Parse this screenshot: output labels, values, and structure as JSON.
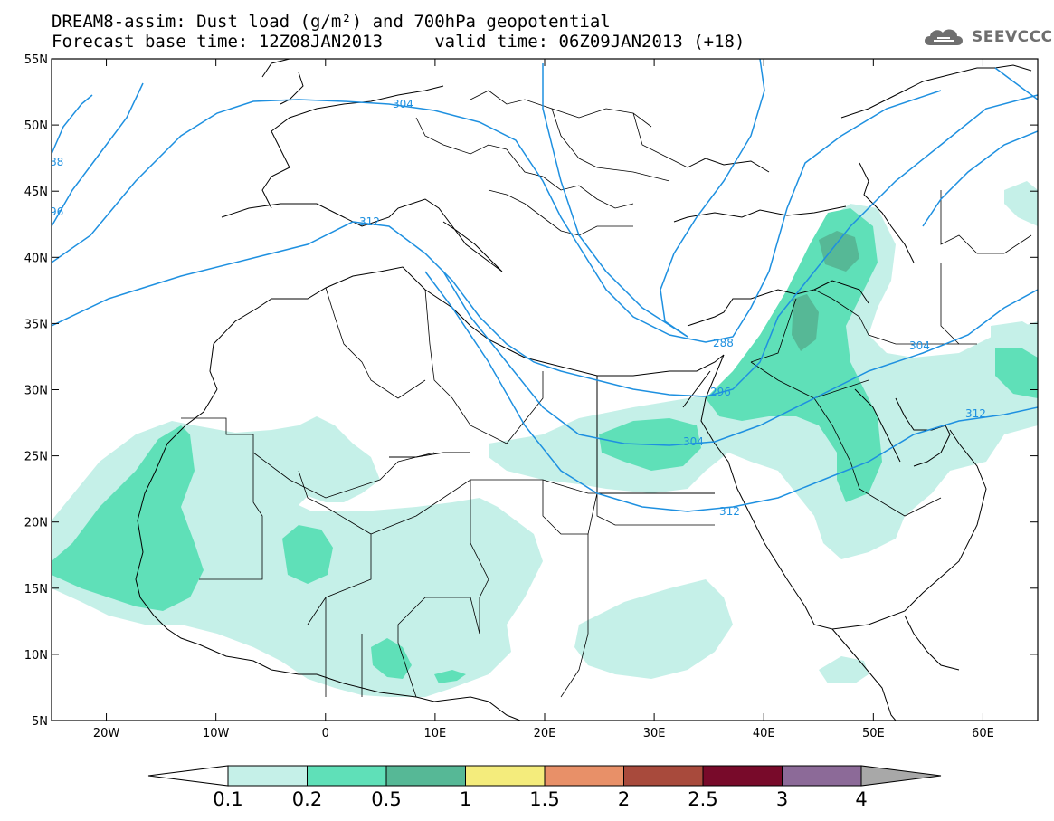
{
  "title": {
    "line1": "DREAM8-assim: Dust load (g/m²) and 700hPa geopotential",
    "line2": "Forecast base time: 12Z08JAN2013     valid time: 06Z09JAN2013 (+18)"
  },
  "logo": {
    "text": "SEEVCCC",
    "icon": "cloud-icon"
  },
  "map": {
    "lon_range": [
      -25,
      65
    ],
    "lat_range": [
      5,
      55
    ],
    "lon_ticks": [
      "20W",
      "10W",
      "0",
      "10E",
      "20E",
      "30E",
      "40E",
      "50E",
      "60E"
    ],
    "lat_ticks": [
      "55N",
      "50N",
      "45N",
      "40N",
      "35N",
      "30N",
      "25N",
      "20N",
      "15N",
      "10N",
      "5N"
    ],
    "contour_color": "#1e90e0",
    "contour_labels": [
      "88",
      "96",
      "304",
      "312",
      "288",
      "296",
      "304",
      "304",
      "312",
      "312"
    ]
  },
  "colorbar": {
    "labels": [
      "0.1",
      "0.2",
      "0.5",
      "1",
      "1.5",
      "2",
      "2.5",
      "3",
      "4"
    ],
    "colors": [
      "#c5f0e8",
      "#5fe0b8",
      "#56b896",
      "#f4ec7c",
      "#e89068",
      "#a84a3c",
      "#780a2a",
      "#8c6a98",
      "#a8a8a8"
    ]
  }
}
